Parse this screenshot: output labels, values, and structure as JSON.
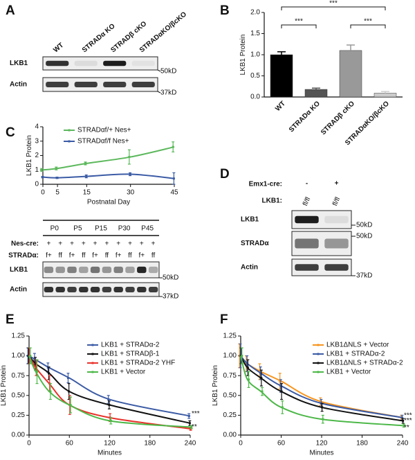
{
  "blot_a": {
    "panel": "A",
    "lanes": [
      "WT",
      "STRADα KO",
      "STRADβ cKO",
      "STRADαKO/βcKO"
    ],
    "rows": [
      "LKB1",
      "Actin"
    ],
    "markers": [
      "50kD",
      "37kD"
    ]
  },
  "blot_c": {
    "timepoints": [
      "P0",
      "P5",
      "P15",
      "P30",
      "P45"
    ],
    "nes_cre": {
      "label": "Nes-cre:",
      "values": [
        "+",
        "+",
        "+",
        "+",
        "+",
        "+",
        "+",
        "+",
        "+",
        "+"
      ]
    },
    "strad": {
      "label": "STRADα:",
      "values": [
        "f+",
        "ff",
        "f+",
        "ff",
        "f+",
        "ff",
        "f+",
        "ff",
        "f+",
        "ff"
      ]
    },
    "rows": [
      "LKB1",
      "Actin"
    ],
    "markers": [
      "50kD",
      "37kD"
    ]
  },
  "blot_d": {
    "panel": "D",
    "emx1": {
      "label": "Emx1-cre:",
      "values": [
        "-",
        "+"
      ]
    },
    "genotype": {
      "label": "LKB1:",
      "values": [
        "fl/fl",
        "fl/fl"
      ]
    },
    "rows": [
      "LKB1",
      "STRADα",
      "Actin"
    ],
    "markers": [
      "50kD",
      "50kD",
      "37kD"
    ]
  },
  "chart_data": [
    {
      "type": "bar",
      "panel": "B",
      "ylabel": "LKB1 Protein",
      "categories": [
        "WT",
        "STRADα KO",
        "STRADβ cKO",
        "STRADαKO/βcKO"
      ],
      "values": [
        1.0,
        0.18,
        1.1,
        0.09
      ],
      "errors": [
        0.07,
        0.03,
        0.13,
        0.04
      ],
      "colors": [
        "#000000",
        "#555555",
        "#999999",
        "#cccccc"
      ],
      "ylim": [
        0,
        2
      ],
      "yticks": [
        {
          "value": 0,
          "label": "0.0"
        },
        {
          "value": 0.5,
          "label": "0.5"
        },
        {
          "value": 1,
          "label": "1.0"
        },
        {
          "value": 1.5,
          "label": "1.5"
        },
        {
          "value": 2,
          "label": "2.0"
        }
      ],
      "annotations": [
        "***",
        "***",
        "***"
      ]
    },
    {
      "type": "line",
      "panel": "C",
      "ylabel": "LKB1 Protein",
      "xlabel": "Postnatal Day",
      "x": [
        0,
        5,
        15,
        30,
        45
      ],
      "xlim": [
        0,
        45
      ],
      "xticks": [
        0,
        5,
        15,
        30,
        45
      ],
      "ylim": [
        0,
        4
      ],
      "yticks": [
        0,
        1,
        2,
        3,
        4
      ],
      "series": [
        {
          "name": "STRADαf/+ Nes+",
          "color": "#5cb85c",
          "values": [
            1.0,
            1.1,
            1.45,
            1.9,
            2.6
          ],
          "errors": [
            0.1,
            0.1,
            0.1,
            0.5,
            0.35
          ]
        },
        {
          "name": "STRADαf/f Nes+",
          "color": "#3b5ba5",
          "values": [
            0.5,
            0.45,
            0.55,
            0.7,
            0.4
          ],
          "errors": [
            0.05,
            0.05,
            0.1,
            0.1,
            0.4
          ]
        }
      ]
    },
    {
      "type": "line",
      "panel": "E",
      "ylabel": "LKB1 Protein",
      "xlabel": "Minutes",
      "x": [
        0,
        10,
        30,
        60,
        120,
        240
      ],
      "xlim": [
        0,
        240
      ],
      "xticks": [
        0,
        60,
        120,
        180,
        240
      ],
      "ylim": [
        0,
        1.25
      ],
      "yticks": [
        {
          "value": 0,
          "label": "0.00"
        },
        {
          "value": 0.25,
          "label": "0.25"
        },
        {
          "value": 0.5,
          "label": "0.50"
        },
        {
          "value": 0.75,
          "label": "0.75"
        },
        {
          "value": 1,
          "label": "1.00"
        },
        {
          "value": 1.25,
          "label": "1.25"
        }
      ],
      "series": [
        {
          "name": "LKB1 + STRADα-2",
          "color": "#3b5ba5",
          "values": [
            1.0,
            0.95,
            0.85,
            0.72,
            0.45,
            0.24
          ],
          "errors": [
            0.1,
            0.08,
            0.06,
            0.06,
            0.05,
            0.03
          ]
        },
        {
          "name": "LKB1 + STRADβ-1",
          "color": "#111111",
          "values": [
            1.0,
            0.9,
            0.78,
            0.55,
            0.38,
            0.15
          ],
          "errors": [
            0.1,
            0.08,
            0.08,
            0.1,
            0.05,
            0.03
          ]
        },
        {
          "name": "LKB1 + STRADα-2 YHF",
          "color": "#e8312b",
          "values": [
            1.0,
            0.85,
            0.65,
            0.38,
            0.22,
            0.08
          ],
          "errors": [
            0.1,
            0.1,
            0.1,
            0.12,
            0.05,
            0.02
          ]
        },
        {
          "name": "LKB1 + Vector",
          "color": "#4db848",
          "values": [
            1.0,
            0.8,
            0.55,
            0.38,
            0.18,
            0.1
          ],
          "errors": [
            0.1,
            0.15,
            0.1,
            0.1,
            0.04,
            0.02
          ]
        }
      ],
      "annotations": [
        "***",
        "**"
      ]
    },
    {
      "type": "line",
      "panel": "F",
      "ylabel": "LKB1 Protein",
      "xlabel": "Minutes",
      "x": [
        0,
        10,
        30,
        60,
        120,
        240
      ],
      "xlim": [
        0,
        240
      ],
      "xticks": [
        0,
        60,
        120,
        180,
        240
      ],
      "ylim": [
        0,
        1.25
      ],
      "yticks": [
        {
          "value": 0,
          "label": "0.00"
        },
        {
          "value": 0.25,
          "label": "0.25"
        },
        {
          "value": 0.5,
          "label": "0.50"
        },
        {
          "value": 0.75,
          "label": "0.75"
        },
        {
          "value": 1,
          "label": "1.00"
        },
        {
          "value": 1.25,
          "label": "1.25"
        }
      ],
      "series": [
        {
          "name": "LKB1ΔNLS + Vector",
          "color": "#f7941d",
          "values": [
            1.0,
            0.9,
            0.8,
            0.68,
            0.42,
            0.22
          ],
          "errors": [
            0.15,
            0.1,
            0.1,
            0.1,
            0.05,
            0.03
          ]
        },
        {
          "name": "LKB1 + STRADα-2",
          "color": "#3b5ba5",
          "values": [
            1.0,
            0.9,
            0.78,
            0.62,
            0.4,
            0.22
          ],
          "errors": [
            0.15,
            0.1,
            0.08,
            0.08,
            0.05,
            0.03
          ]
        },
        {
          "name": "LKB1ΔNLS + STRADα-2",
          "color": "#111111",
          "values": [
            1.0,
            0.85,
            0.72,
            0.55,
            0.35,
            0.18
          ],
          "errors": [
            0.1,
            0.1,
            0.1,
            0.1,
            0.05,
            0.03
          ]
        },
        {
          "name": "LKB1 + Vector",
          "color": "#4db848",
          "values": [
            1.0,
            0.7,
            0.55,
            0.35,
            0.2,
            0.12
          ],
          "errors": [
            0.1,
            0.1,
            0.05,
            0.08,
            0.05,
            0.02
          ]
        }
      ],
      "annotations": [
        "***",
        "***",
        "**"
      ]
    }
  ]
}
